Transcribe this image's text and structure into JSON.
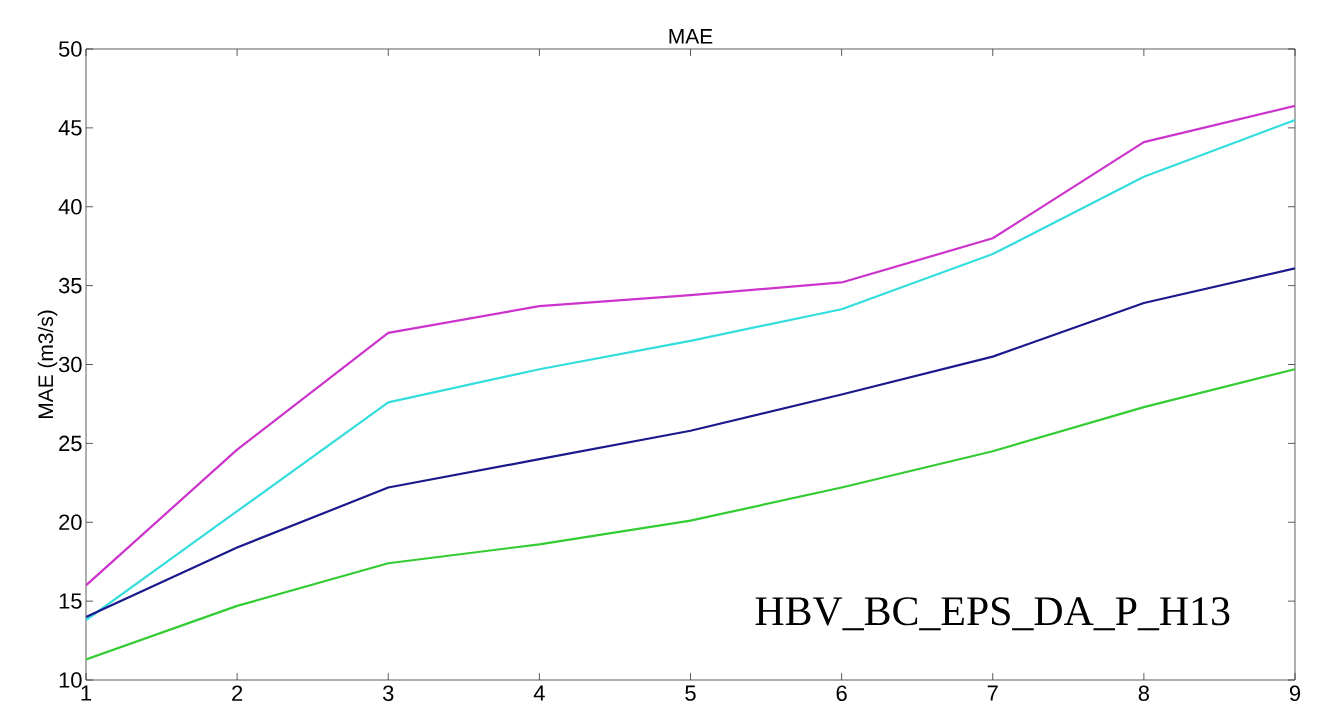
{
  "chart_data": {
    "type": "line",
    "title": "MAE",
    "ylabel": "MAE (m3/s)",
    "x": [
      1,
      2,
      3,
      4,
      5,
      6,
      7,
      8,
      9
    ],
    "series": [
      {
        "color": "#cc33cc",
        "values": [
          16.0,
          24.6,
          32.0,
          33.7,
          34.4,
          35.2,
          38.0,
          44.1,
          46.4
        ]
      },
      {
        "color": "#33dddd",
        "values": [
          13.8,
          20.7,
          27.6,
          29.7,
          31.5,
          33.5,
          37.0,
          41.9,
          45.5
        ]
      },
      {
        "color": "#1a1a8c",
        "values": [
          14.0,
          18.4,
          22.2,
          24.0,
          25.8,
          28.1,
          30.5,
          33.9,
          36.1
        ]
      },
      {
        "color": "#33cc33",
        "values": [
          11.3,
          14.7,
          17.4,
          18.6,
          20.1,
          22.2,
          24.5,
          27.3,
          29.7
        ]
      }
    ],
    "xlim": [
      1,
      9
    ],
    "xticks": [
      1,
      2,
      3,
      4,
      5,
      6,
      7,
      8,
      9
    ],
    "ylim": [
      10,
      50
    ],
    "yticks": [
      10,
      15,
      20,
      25,
      30,
      35,
      40,
      45,
      50
    ],
    "grid": false,
    "legend": false,
    "marker": "none",
    "line_style": "solid",
    "annotations": [
      "HBV_BC_EPS_DA_P_H13"
    ]
  }
}
